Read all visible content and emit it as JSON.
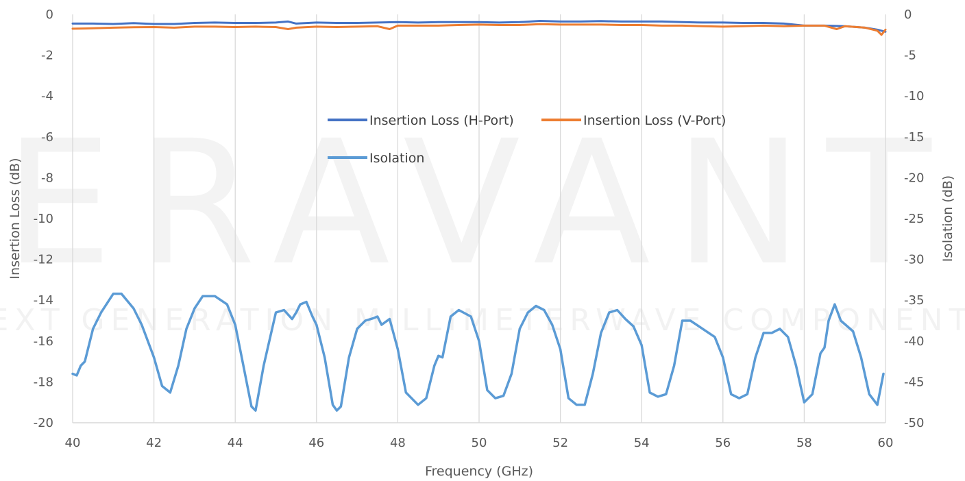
{
  "watermark": {
    "brand": "ERAVANT",
    "tagline": "NEXT GENERATION MILLIMETERWAVE COMPONENTS"
  },
  "chart_data": {
    "type": "line",
    "xlabel": "Frequency (GHz)",
    "ylabel_left": "Insertion Loss (dB)",
    "ylabel_right": "Isolation (dB)",
    "xlim": [
      40,
      60
    ],
    "ylim_left": [
      -20,
      0
    ],
    "ylim_right": [
      -50,
      0
    ],
    "x_ticks": [
      "40",
      "42",
      "44",
      "46",
      "48",
      "50",
      "52",
      "54",
      "56",
      "58",
      "60"
    ],
    "y_ticks_left": [
      "0",
      "-2",
      "-4",
      "-6",
      "-8",
      "-10",
      "-12",
      "-14",
      "-16",
      "-18",
      "-20"
    ],
    "y_ticks_right": [
      "0",
      "-5",
      "-10",
      "-15",
      "-20",
      "-25",
      "-30",
      "-35",
      "-40",
      "-45",
      "-50"
    ],
    "grid": "vertical",
    "legend_position": "center",
    "series": [
      {
        "name": "Insertion Loss (H-Port)",
        "axis": "left",
        "color": "#4472c4",
        "x": [
          40,
          40.5,
          41,
          41.5,
          42,
          42.5,
          43,
          43.5,
          44,
          44.5,
          45,
          45.3,
          45.5,
          46,
          46.5,
          47,
          47.5,
          48,
          48.5,
          49,
          49.5,
          50,
          50.5,
          51,
          51.5,
          52,
          52.5,
          53,
          53.5,
          54,
          54.5,
          55,
          55.5,
          56,
          56.5,
          57,
          57.5,
          58,
          58.5,
          59,
          59.5,
          59.8,
          60
        ],
        "values": [
          -0.45,
          -0.45,
          -0.47,
          -0.43,
          -0.47,
          -0.47,
          -0.42,
          -0.4,
          -0.42,
          -0.42,
          -0.4,
          -0.35,
          -0.45,
          -0.4,
          -0.42,
          -0.42,
          -0.4,
          -0.38,
          -0.4,
          -0.38,
          -0.38,
          -0.38,
          -0.4,
          -0.38,
          -0.32,
          -0.35,
          -0.35,
          -0.33,
          -0.35,
          -0.35,
          -0.35,
          -0.38,
          -0.4,
          -0.4,
          -0.42,
          -0.42,
          -0.45,
          -0.55,
          -0.55,
          -0.58,
          -0.65,
          -0.75,
          -0.85
        ]
      },
      {
        "name": "Insertion Loss (V-Port)",
        "axis": "left",
        "color": "#ed7d31",
        "x": [
          40,
          40.5,
          41,
          41.5,
          42,
          42.5,
          43,
          43.5,
          44,
          44.5,
          45,
          45.3,
          45.5,
          46,
          46.5,
          47,
          47.5,
          47.8,
          48,
          48.5,
          49,
          49.5,
          50,
          50.5,
          51,
          51.5,
          52,
          52.5,
          53,
          53.5,
          54,
          54.5,
          55,
          55.5,
          56,
          56.5,
          57,
          57.5,
          58,
          58.5,
          58.8,
          59,
          59.5,
          59.8,
          59.9,
          60
        ],
        "values": [
          -0.7,
          -0.68,
          -0.65,
          -0.63,
          -0.62,
          -0.65,
          -0.6,
          -0.6,
          -0.62,
          -0.6,
          -0.62,
          -0.72,
          -0.65,
          -0.6,
          -0.62,
          -0.6,
          -0.58,
          -0.72,
          -0.55,
          -0.55,
          -0.55,
          -0.52,
          -0.5,
          -0.52,
          -0.52,
          -0.48,
          -0.5,
          -0.5,
          -0.5,
          -0.52,
          -0.52,
          -0.55,
          -0.55,
          -0.58,
          -0.6,
          -0.58,
          -0.55,
          -0.58,
          -0.55,
          -0.55,
          -0.72,
          -0.58,
          -0.65,
          -0.8,
          -1.0,
          -0.75
        ]
      },
      {
        "name": "Isolation",
        "axis": "right",
        "color": "#5b9bd5",
        "x": [
          40,
          40.1,
          40.2,
          40.3,
          40.5,
          40.7,
          41,
          41.2,
          41.5,
          41.7,
          42,
          42.2,
          42.4,
          42.6,
          42.8,
          43,
          43.2,
          43.5,
          43.8,
          44,
          44.2,
          44.4,
          44.5,
          44.7,
          45,
          45.2,
          45.4,
          45.5,
          45.6,
          45.75,
          45.9,
          46,
          46.2,
          46.4,
          46.5,
          46.6,
          46.8,
          47,
          47.2,
          47.4,
          47.5,
          47.6,
          47.8,
          48,
          48.2,
          48.5,
          48.7,
          48.9,
          49,
          49.1,
          49.3,
          49.5,
          49.8,
          50,
          50.2,
          50.4,
          50.6,
          50.8,
          51,
          51.2,
          51.4,
          51.6,
          51.8,
          52,
          52.2,
          52.4,
          52.6,
          52.8,
          53,
          53.2,
          53.4,
          53.6,
          53.8,
          54,
          54.2,
          54.4,
          54.6,
          54.8,
          55,
          55.2,
          55.5,
          55.8,
          56,
          56.2,
          56.4,
          56.6,
          56.8,
          57,
          57.2,
          57.4,
          57.6,
          57.8,
          58,
          58.2,
          58.4,
          58.5,
          58.6,
          58.75,
          58.9,
          59.2,
          59.4,
          59.6,
          59.8,
          59.95
        ],
        "values": [
          -44,
          -44.2,
          -43,
          -42.5,
          -38.5,
          -36.5,
          -34.2,
          -34.2,
          -36,
          -38,
          -42,
          -45.5,
          -46.3,
          -43,
          -38.5,
          -36,
          -34.5,
          -34.5,
          -35.5,
          -38,
          -43,
          -48,
          -48.5,
          -43,
          -36.5,
          -36.2,
          -37.3,
          -36.5,
          -35.5,
          -35.2,
          -37,
          -38,
          -42,
          -47.8,
          -48.5,
          -48,
          -42,
          -38.5,
          -37.5,
          -37.2,
          -37,
          -38,
          -37.3,
          -41,
          -46.3,
          -47.8,
          -47,
          -43,
          -41.8,
          -42,
          -37,
          -36.2,
          -37,
          -40,
          -46,
          -47,
          -46.7,
          -44,
          -38.5,
          -36.5,
          -35.7,
          -36.2,
          -38,
          -41,
          -47,
          -47.8,
          -47.8,
          -44,
          -39,
          -36.5,
          -36.2,
          -37.3,
          -38.2,
          -40.5,
          -46.3,
          -46.8,
          -46.5,
          -43,
          -37.5,
          -37.5,
          -38.5,
          -39.5,
          -42,
          -46.5,
          -47,
          -46.5,
          -42,
          -39,
          -39,
          -38.5,
          -39.5,
          -43,
          -47.5,
          -46.5,
          -41.5,
          -40.8,
          -37.5,
          -35.5,
          -37.5,
          -38.8,
          -42,
          -46.5,
          -47.8,
          -44
        ]
      }
    ]
  }
}
